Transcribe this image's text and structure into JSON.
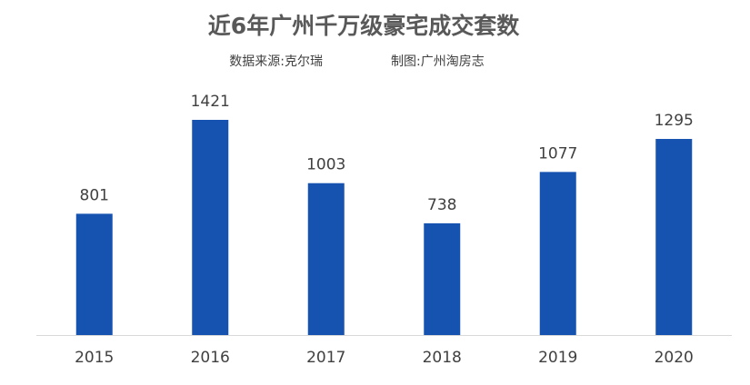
{
  "chart_data": {
    "type": "bar",
    "title": "近6年广州千万级豪宅成交套数",
    "subtitle": "数据来源:克尔瑞",
    "caption": "制图:广州淘房志",
    "categories": [
      "2015",
      "2016",
      "2017",
      "2018",
      "2019",
      "2020"
    ],
    "values": [
      801,
      1421,
      1003,
      738,
      1077,
      1295
    ],
    "color": "#1652b0"
  }
}
